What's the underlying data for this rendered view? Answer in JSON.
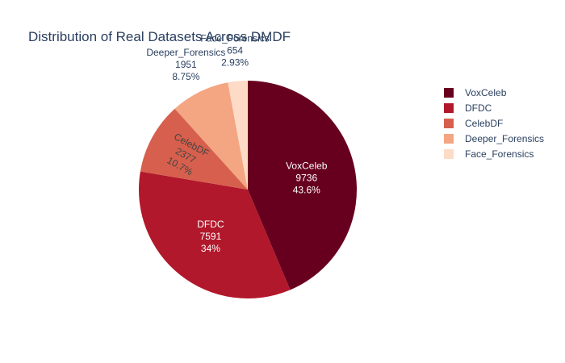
{
  "chart_data": {
    "type": "pie",
    "title": "Distribution of Real Datasets Across DMDF",
    "legend_position": "top-right",
    "direction": "clockwise",
    "start": "top",
    "slices": [
      {
        "label": "VoxCeleb",
        "value": 9736,
        "percent": "43.6%",
        "color": "#67001f",
        "label_position": "inside",
        "text_color": "#ffffff"
      },
      {
        "label": "DFDC",
        "value": 7591,
        "percent": "34%",
        "color": "#b2182b",
        "label_position": "inside",
        "text_color": "#ffffff"
      },
      {
        "label": "CelebDF",
        "value": 2377,
        "percent": "10.7%",
        "color": "#d6604d",
        "label_position": "inside-radial",
        "text_color": "#444444"
      },
      {
        "label": "Deeper_Forensics",
        "value": 1951,
        "percent": "8.75%",
        "color": "#f4a582",
        "label_position": "outside",
        "text_color": "#2a3f5f"
      },
      {
        "label": "Face_Forensics",
        "value": 654,
        "percent": "2.93%",
        "color": "#fddbc7",
        "label_position": "outside",
        "text_color": "#2a3f5f"
      }
    ]
  }
}
